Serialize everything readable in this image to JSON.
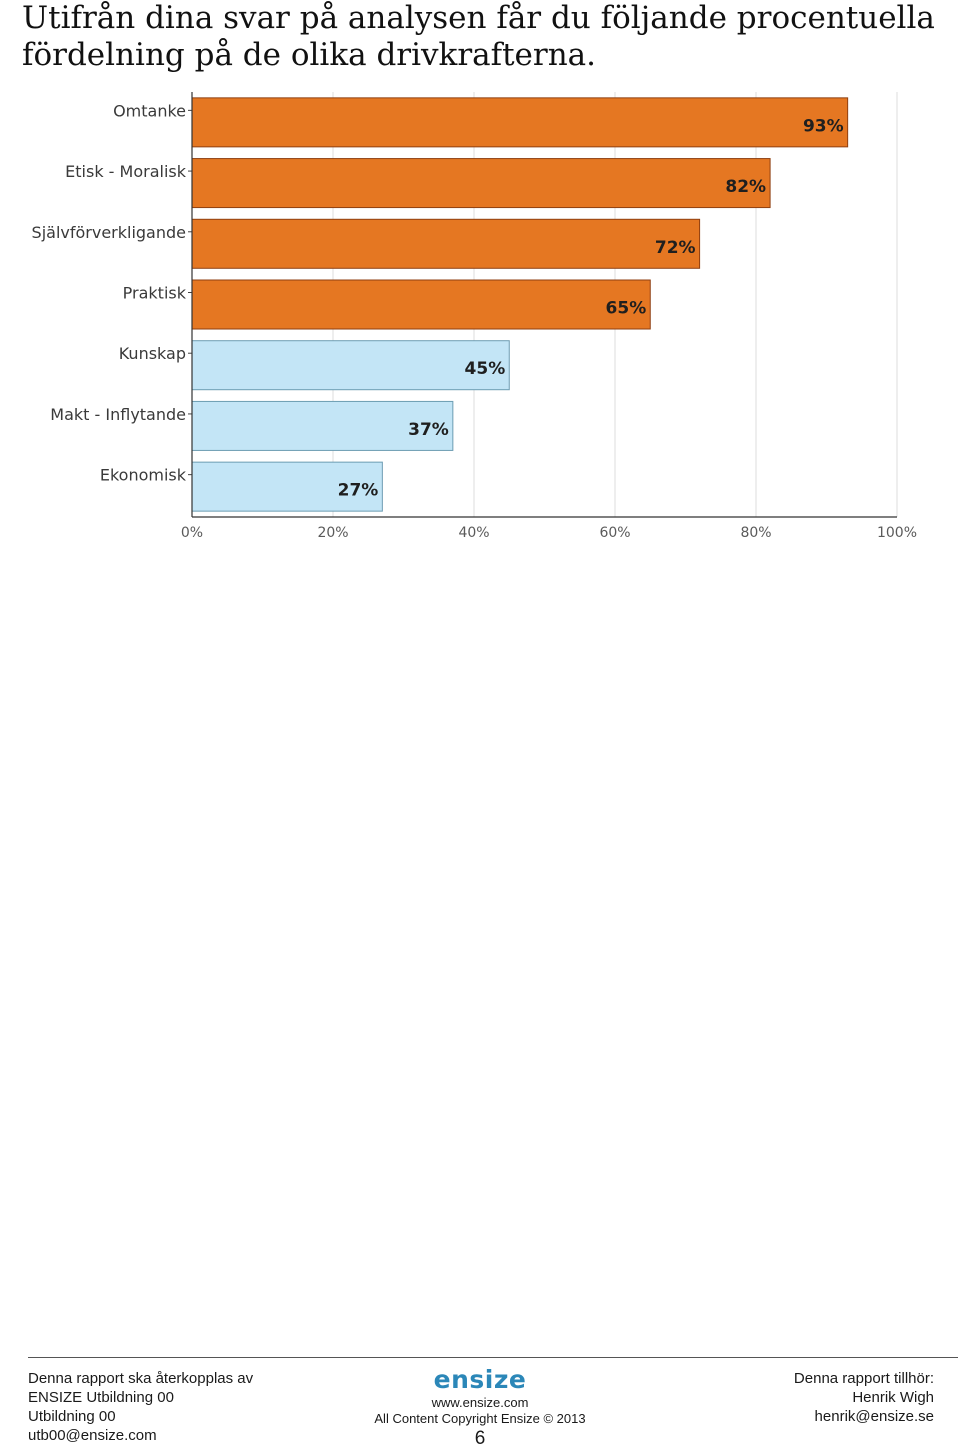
{
  "page": {
    "title": "Utifrån dina svar på analysen får du följande procentuella fördelning på de olika drivkrafterna."
  },
  "chart_data": {
    "type": "bar",
    "orientation": "horizontal",
    "categories": [
      "Omtanke",
      "Etisk - Moralisk",
      "Självförverkligande",
      "Praktisk",
      "Kunskap",
      "Makt - Inflytande",
      "Ekonomisk"
    ],
    "values": [
      93,
      82,
      72,
      65,
      45,
      37,
      27
    ],
    "value_labels": [
      "93%",
      "82%",
      "72%",
      "65%",
      "45%",
      "37%",
      "27%"
    ],
    "bar_colors": [
      "#e57722",
      "#e57722",
      "#e57722",
      "#e57722",
      "#c3e5f6",
      "#c3e5f6",
      "#c3e5f6"
    ],
    "bar_edge_colors": [
      "#8f3f10",
      "#8f3f10",
      "#8f3f10",
      "#8f3f10",
      "#6c9cb2",
      "#6c9cb2",
      "#6c9cb2"
    ],
    "xlim": [
      0,
      100
    ],
    "x_ticks": [
      0,
      20,
      40,
      60,
      80,
      100
    ],
    "x_tick_labels": [
      "0%",
      "20%",
      "40%",
      "60%",
      "80%",
      "100%"
    ],
    "grid": true,
    "title": "",
    "xlabel": "",
    "ylabel": ""
  },
  "footer": {
    "left": {
      "line1": "Denna rapport ska återkopplas av",
      "line2": "ENSIZE Utbildning 00",
      "line3": "Utbildning 00",
      "line4": "utb00@ensize.com"
    },
    "center": {
      "logo_text": "ensize",
      "logo_color": "#2b87b8",
      "website": "www.ensize.com",
      "copyright": "All Content Copyright Ensize © 2013",
      "page_number": "6"
    },
    "right": {
      "line1": "Denna rapport tillhör:",
      "line2": "Henrik Wigh",
      "line3": "henrik@ensize.se"
    }
  }
}
